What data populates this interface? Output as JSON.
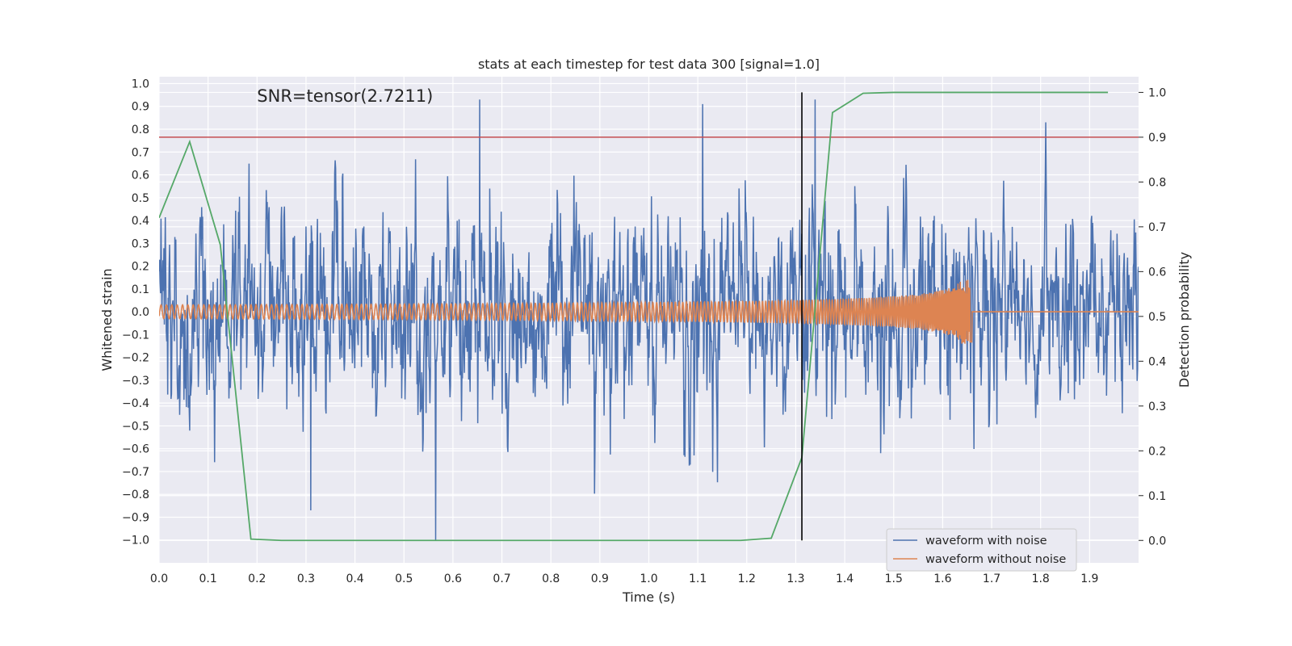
{
  "chart_data": {
    "type": "line",
    "title": "stats at each timestep for test data 300 [signal=1.0]",
    "annotation": "SNR=tensor(2.7211)",
    "xlabel": "Time (s)",
    "ylabel_left": "Whitened strain",
    "ylabel_right": "Detection probability",
    "xlim": [
      0.0,
      2.0
    ],
    "ylim_left": [
      -1.1,
      1.03
    ],
    "ylim_right": [
      -0.05,
      1.035
    ],
    "x_ticks": [
      "0.0",
      "0.1",
      "0.2",
      "0.3",
      "0.4",
      "0.5",
      "0.6",
      "0.7",
      "0.8",
      "0.9",
      "1.0",
      "1.1",
      "1.2",
      "1.3",
      "1.4",
      "1.5",
      "1.6",
      "1.7",
      "1.8",
      "1.9"
    ],
    "y_ticks_left": [
      "1.0",
      "0.9",
      "0.8",
      "0.7",
      "0.6",
      "0.5",
      "0.4",
      "0.3",
      "0.2",
      "0.1",
      "0.0",
      "−0.1",
      "−0.2",
      "−0.3",
      "−0.4",
      "−0.5",
      "−0.6",
      "−0.7",
      "−0.8",
      "−0.9",
      "−1.0"
    ],
    "y_ticks_right": [
      "1.0",
      "0.9",
      "0.8",
      "0.7",
      "0.6",
      "0.5",
      "0.4",
      "0.3",
      "0.2",
      "0.1",
      "0.0"
    ],
    "grid": true,
    "legend_position": "lower-right",
    "series": [
      {
        "name": "waveform with noise",
        "axis": "left",
        "color": "#4c72b0",
        "description_kind": "noise",
        "x_range": [
          0.0,
          2.0
        ],
        "amplitude_typical": 0.35,
        "peaks": [
          [
            0.655,
            0.93
          ],
          [
            1.11,
            0.91
          ],
          [
            0.565,
            -1.0
          ],
          [
            1.34,
            0.93
          ],
          [
            1.81,
            0.83
          ],
          [
            0.31,
            -0.87
          ]
        ]
      },
      {
        "name": "waveform without noise",
        "axis": "left",
        "color": "#dd8452",
        "description_kind": "chirp",
        "x_range": [
          0.0,
          1.66
        ],
        "amplitude_start": 0.03,
        "amplitude_end": 0.14
      },
      {
        "name": "",
        "axis": "right",
        "color": "#55a868",
        "x": [
          0.0,
          0.0625,
          0.125,
          0.1875,
          0.25,
          0.3125,
          0.375,
          0.4375,
          0.5,
          0.5625,
          0.625,
          0.6875,
          0.75,
          0.8125,
          0.875,
          0.9375,
          1.0,
          1.0625,
          1.125,
          1.1875,
          1.25,
          1.3125,
          1.375,
          1.4375,
          1.5,
          1.5625,
          1.625,
          1.6875,
          1.75,
          1.8125,
          1.875,
          1.9375
        ],
        "y": [
          0.72,
          0.89,
          0.66,
          0.003,
          0.0,
          0.0,
          0.0,
          0.0,
          0.0,
          0.0,
          0.0,
          0.0,
          0.0,
          0.0,
          0.0,
          0.0,
          0.0,
          0.0,
          0.0,
          0.0,
          0.005,
          0.185,
          0.955,
          0.998,
          1.0,
          1.0,
          1.0,
          1.0,
          1.0,
          1.0,
          1.0,
          1.0
        ]
      }
    ],
    "threshold_line": {
      "axis": "right",
      "y": 0.9,
      "color": "#c44e52"
    },
    "vertical_line": {
      "x": 1.3125,
      "axis": "right",
      "y_from": 0.0,
      "y_to": 1.0,
      "color": "#000000"
    }
  }
}
